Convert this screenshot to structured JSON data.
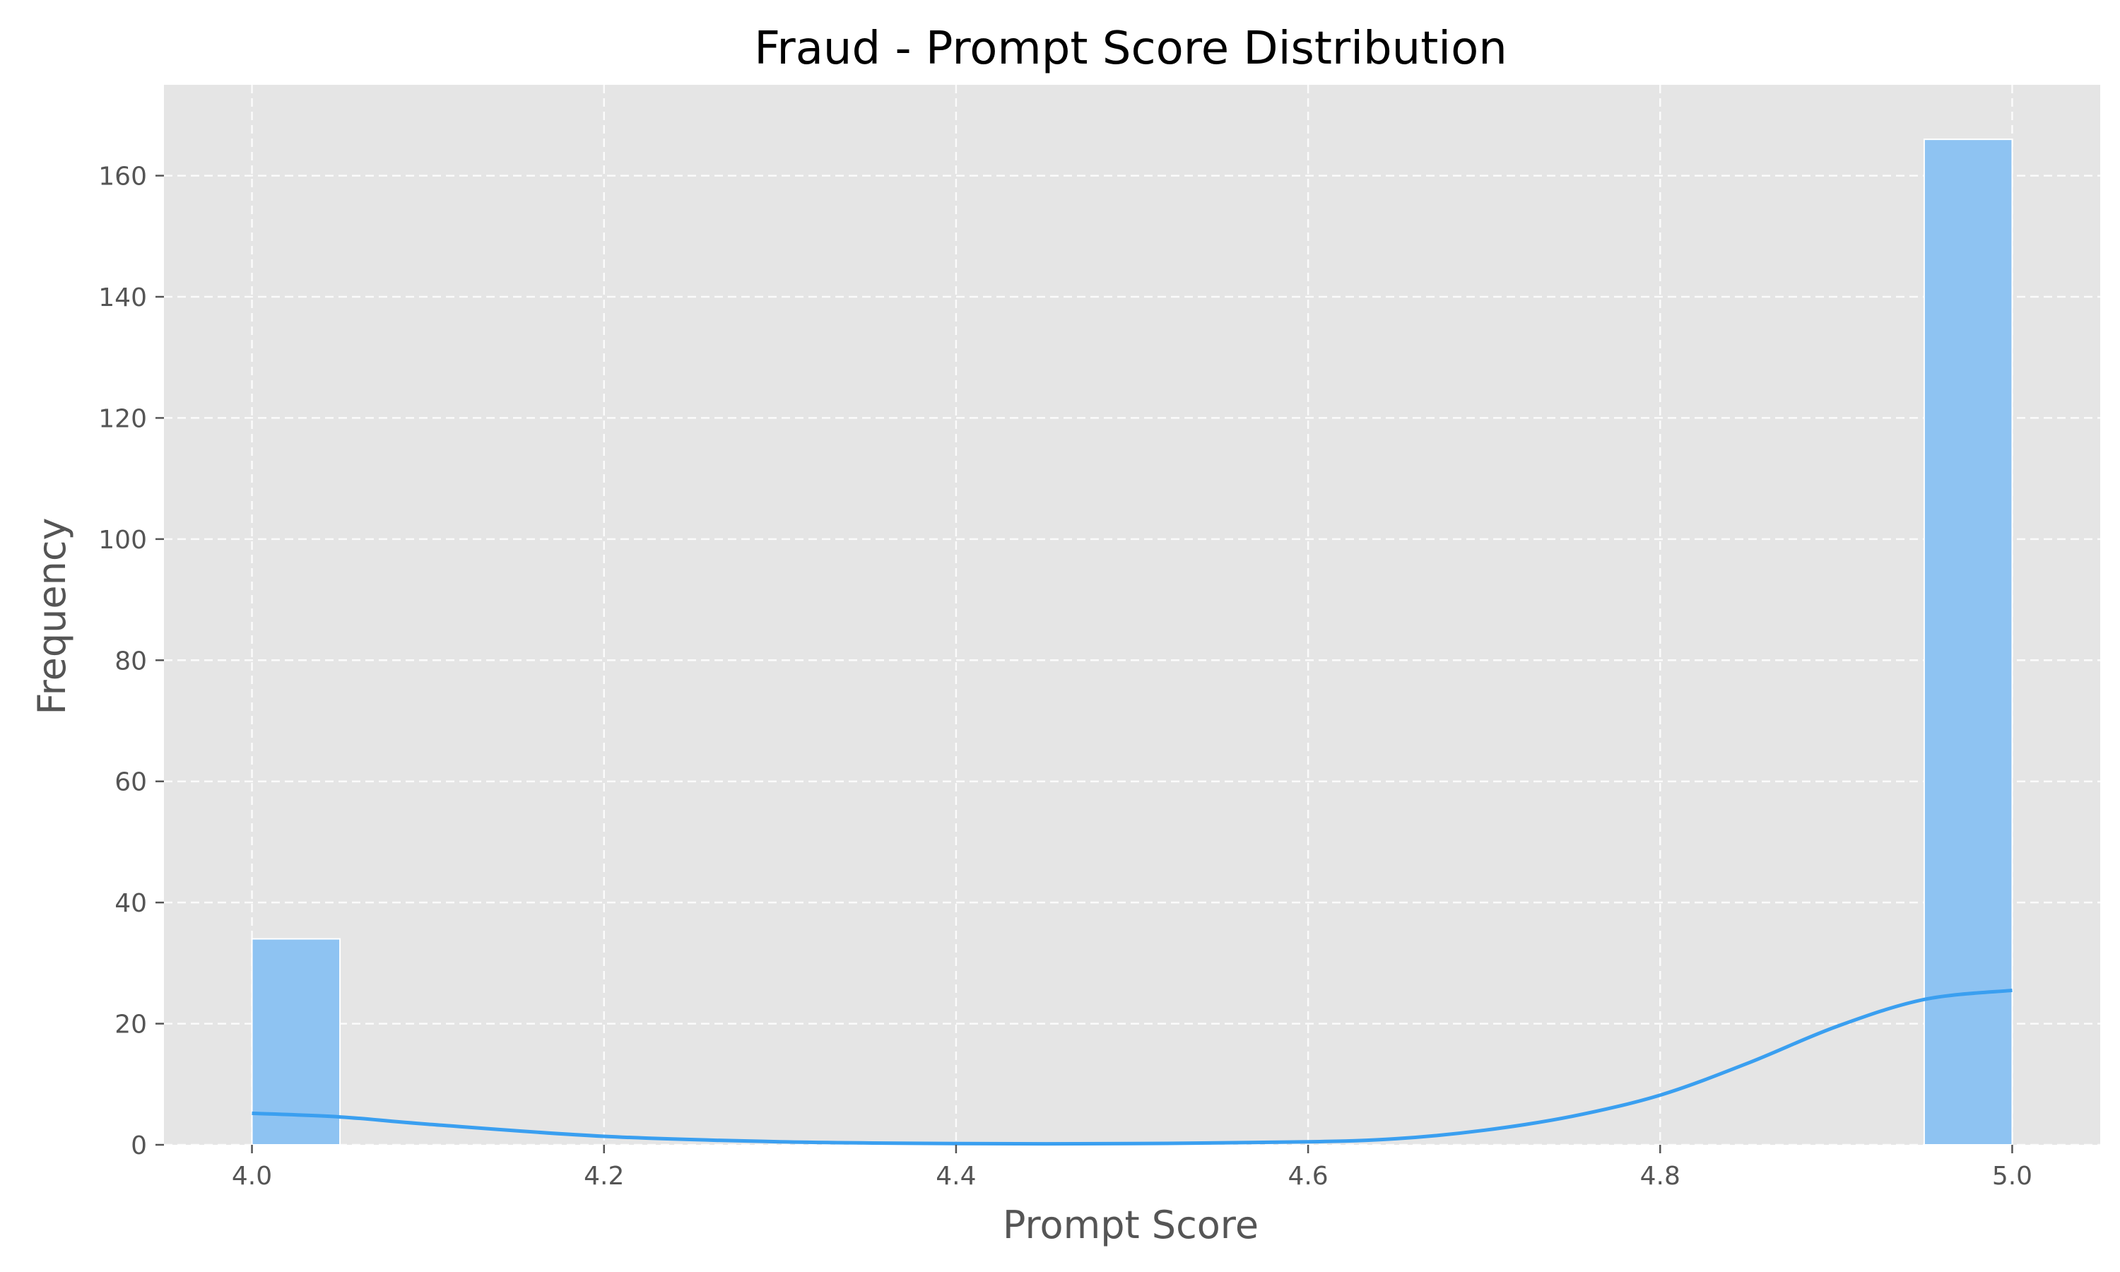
{
  "chart_data": {
    "type": "bar",
    "title": "Fraud - Prompt Score Distribution",
    "xlabel": "Prompt Score",
    "ylabel": "Frequency",
    "xlim": [
      3.95,
      5.05
    ],
    "ylim": [
      0,
      175
    ],
    "xticks": [
      4.0,
      4.2,
      4.4,
      4.6,
      4.8,
      5.0
    ],
    "xtick_labels": [
      "4.0",
      "4.2",
      "4.4",
      "4.6",
      "4.8",
      "5.0"
    ],
    "yticks": [
      0,
      20,
      40,
      60,
      80,
      100,
      120,
      140,
      160
    ],
    "ytick_labels": [
      "0",
      "20",
      "40",
      "60",
      "80",
      "100",
      "120",
      "140",
      "160"
    ],
    "grid": true,
    "bins": [
      {
        "x_start": 4.0,
        "x_end": 4.05,
        "count": 34
      },
      {
        "x_start": 4.95,
        "x_end": 5.0,
        "count": 166
      }
    ],
    "kde": {
      "x": [
        4.0,
        4.05,
        4.1,
        4.2,
        4.3,
        4.4,
        4.5,
        4.6,
        4.65,
        4.7,
        4.75,
        4.8,
        4.85,
        4.9,
        4.95,
        5.0
      ],
      "y": [
        5.2,
        4.6,
        3.4,
        1.4,
        0.5,
        0.2,
        0.2,
        0.5,
        1.0,
        2.4,
        4.7,
        8.2,
        13.5,
        19.5,
        24.0,
        25.5
      ]
    },
    "colors": {
      "plot_bg": "#e5e5e5",
      "bar_fill": "#8ec3f2",
      "bar_edge": "#ffffff",
      "kde_line": "#3a9ff0"
    }
  }
}
